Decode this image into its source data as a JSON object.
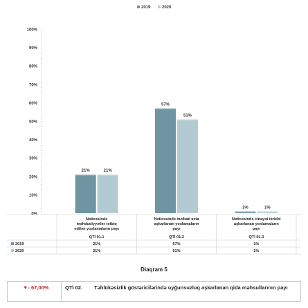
{
  "chart_data": {
    "type": "bar",
    "ylim": [
      0,
      100
    ],
    "ytick_labels": [
      "0%",
      "10%",
      "20%",
      "30%",
      "40%",
      "50%",
      "60%",
      "70%",
      "80%",
      "90%",
      "100%"
    ],
    "series": [
      {
        "name": "2019",
        "color": "#6e95a1",
        "values": [
          21,
          57,
          1
        ],
        "labels": [
          "21%",
          "57%",
          "1%"
        ]
      },
      {
        "name": "2020",
        "color": "#b2cbd2",
        "values": [
          21,
          51,
          1
        ],
        "labels": [
          "21%",
          "51%",
          "1%"
        ]
      }
    ],
    "categories": [
      {
        "lines": [
          "Nəticəsində",
          "məhdudiyyətlər tətbiq",
          "edilən yoxlamaların payı"
        ],
        "code": "QTİ 01.1"
      },
      {
        "lines": [
          "Nəticəsində inzibati xəta",
          "aşkarlanan yoxlamaların",
          "payı"
        ],
        "code": "QTİ 01.2"
      },
      {
        "lines": [
          "Nəticəsində cinayət tərkibi",
          "aşkarlanan yoxlamaların",
          "payı"
        ],
        "code": "QTİ 01.3"
      }
    ]
  },
  "caption": "Diaqram 5",
  "footer": {
    "percent": "▼- 67,00%",
    "code": "QTİ 02.",
    "title": "Təhlükəsizlik göstəricilərində uyğunsuzluq aşkarlanan qida məhsullarının payı"
  }
}
